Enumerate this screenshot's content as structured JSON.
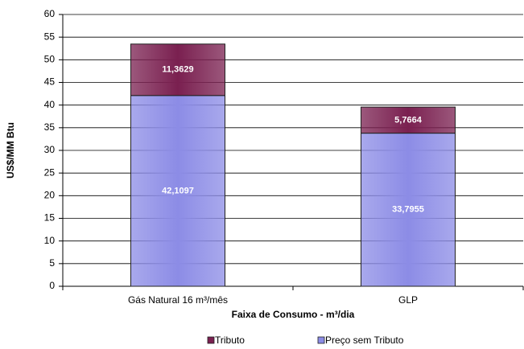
{
  "chart_data": {
    "type": "stacked-bar",
    "categories": [
      "Gás Natural 16 m³/mês",
      "GLP"
    ],
    "series": [
      {
        "name": "Preço sem Tributo",
        "color": "#8c8ce6",
        "values": [
          42.1097,
          33.7955
        ],
        "value_labels": [
          "42,1097",
          "33,7955"
        ]
      },
      {
        "name": "Tributo",
        "color": "#7a2050",
        "values": [
          11.3629,
          5.7664
        ],
        "value_labels": [
          "11,3629",
          "5,7664"
        ]
      }
    ],
    "x_label": "Faixa de Consumo - m³/dia",
    "y_label": "US$/MM Btu",
    "ylim": [
      0,
      60
    ],
    "yticks": [
      0,
      5,
      10,
      15,
      20,
      25,
      30,
      35,
      40,
      45,
      50,
      55,
      60
    ],
    "grid": true,
    "legend": "bottom"
  }
}
